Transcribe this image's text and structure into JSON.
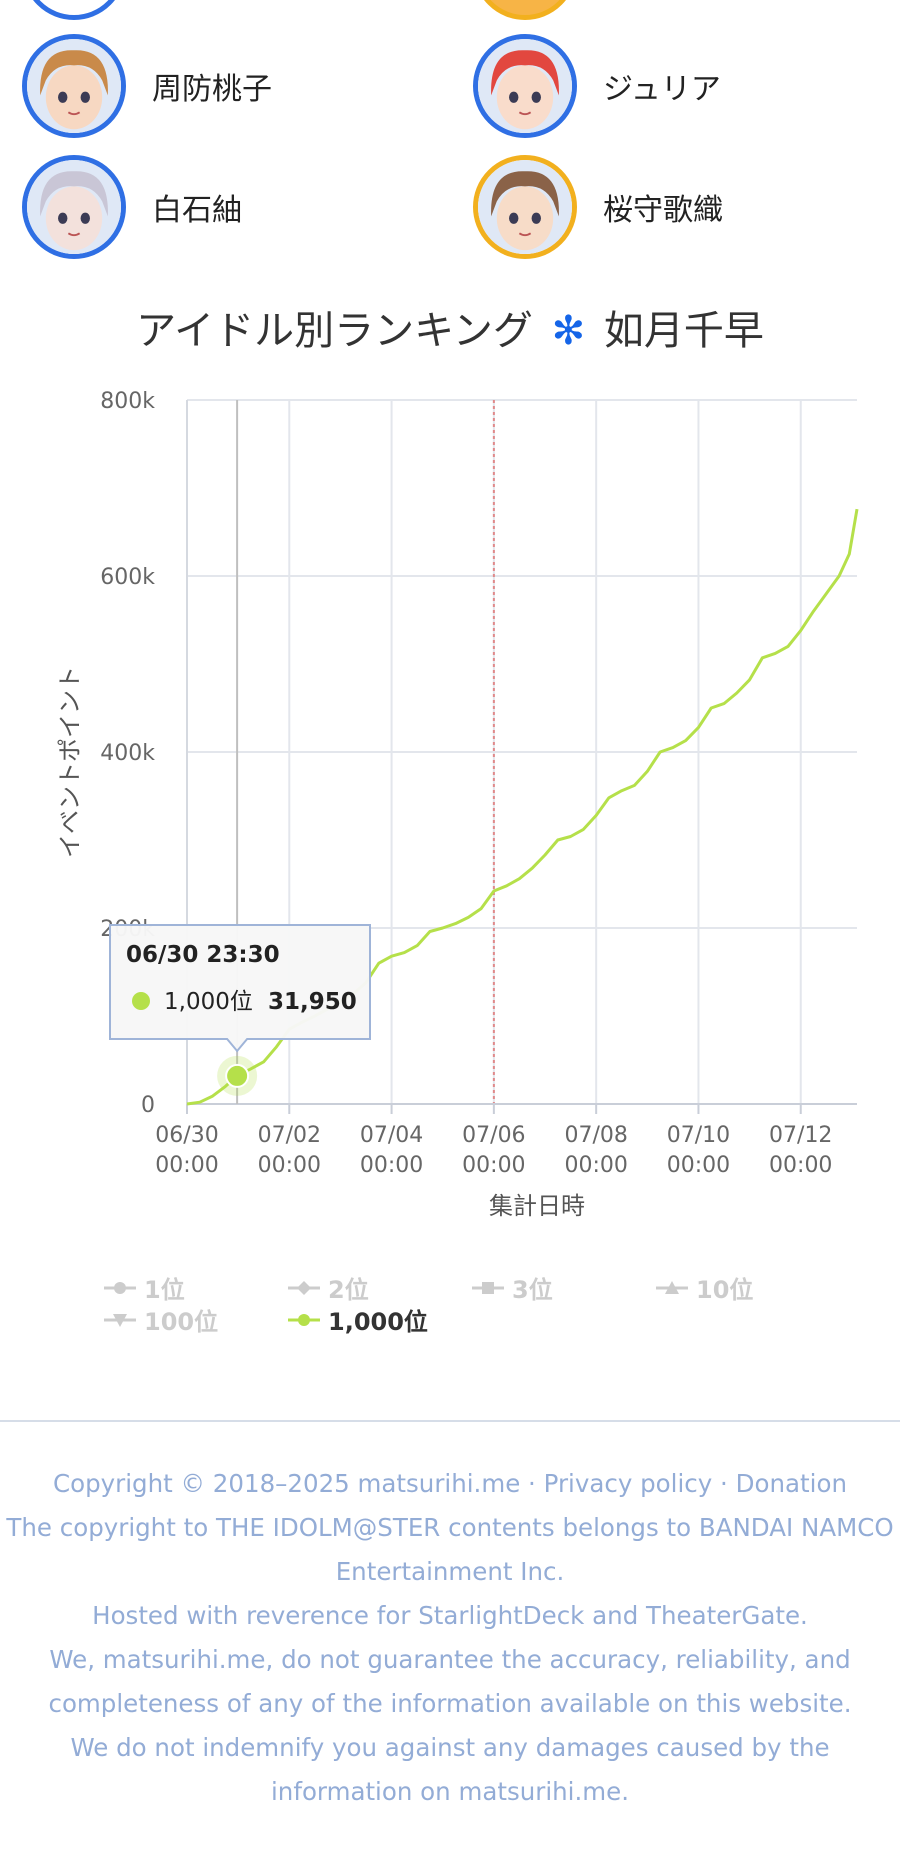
{
  "idols": [
    {
      "name": "周防桃子",
      "border": "#2f6fe4",
      "hair": "#c98a4a",
      "skin": "#f7d8c2"
    },
    {
      "name": "ジュリア",
      "border": "#2f6fe4",
      "hair": "#e2473f",
      "skin": "#f9dccb"
    },
    {
      "name": "白石紬",
      "border": "#2f6fe4",
      "hair": "#c9c6d6",
      "skin": "#f3e1dc"
    },
    {
      "name": "桜守歌織",
      "border": "#f2b01e",
      "hair": "#8a6248",
      "skin": "#f7dcc8"
    }
  ],
  "chart_title": {
    "prefix": "アイドル別ランキング",
    "star_icon": "snowflake-star-icon",
    "idol": "如月千早"
  },
  "chart_data": {
    "type": "line",
    "ylabel": "イベントポイント",
    "xlabel": "集計日時",
    "ylim": [
      0,
      800000
    ],
    "y_ticks": [
      "0",
      "200k",
      "400k",
      "600k",
      "800k"
    ],
    "x_ticks": [
      {
        "date": "06/30",
        "time": "00:00",
        "day": 0
      },
      {
        "date": "07/02",
        "time": "00:00",
        "day": 2
      },
      {
        "date": "07/04",
        "time": "00:00",
        "day": 4
      },
      {
        "date": "07/06",
        "time": "00:00",
        "day": 6
      },
      {
        "date": "07/08",
        "time": "00:00",
        "day": 8
      },
      {
        "date": "07/10",
        "time": "00:00",
        "day": 10
      },
      {
        "date": "07/12",
        "time": "00:00",
        "day": 12
      }
    ],
    "x_range_days": [
      0,
      13.1
    ],
    "midpoint_marker_day": 6,
    "grid": true,
    "series": [
      {
        "name": "1,000位",
        "color": "#b5e04a",
        "points": [
          [
            0,
            0
          ],
          [
            0.25,
            2000
          ],
          [
            0.5,
            9000
          ],
          [
            0.75,
            20000
          ],
          [
            0.98,
            31950
          ],
          [
            1.25,
            40000
          ],
          [
            1.5,
            48000
          ],
          [
            1.75,
            65000
          ],
          [
            2.0,
            85000
          ],
          [
            2.25,
            93000
          ],
          [
            2.5,
            100000
          ],
          [
            2.75,
            108000
          ],
          [
            3.0,
            116000
          ],
          [
            3.25,
            125000
          ],
          [
            3.5,
            138000
          ],
          [
            3.75,
            160000
          ],
          [
            4.0,
            168000
          ],
          [
            4.25,
            172000
          ],
          [
            4.5,
            180000
          ],
          [
            4.75,
            196000
          ],
          [
            5.0,
            200000
          ],
          [
            5.25,
            205000
          ],
          [
            5.5,
            212000
          ],
          [
            5.75,
            222000
          ],
          [
            6.0,
            242000
          ],
          [
            6.25,
            248000
          ],
          [
            6.5,
            256000
          ],
          [
            6.75,
            268000
          ],
          [
            7.0,
            283000
          ],
          [
            7.25,
            300000
          ],
          [
            7.5,
            304000
          ],
          [
            7.75,
            312000
          ],
          [
            8.0,
            328000
          ],
          [
            8.25,
            348000
          ],
          [
            8.5,
            356000
          ],
          [
            8.75,
            362000
          ],
          [
            9.0,
            378000
          ],
          [
            9.25,
            400000
          ],
          [
            9.5,
            405000
          ],
          [
            9.75,
            413000
          ],
          [
            10.0,
            428000
          ],
          [
            10.25,
            450000
          ],
          [
            10.5,
            455000
          ],
          [
            10.75,
            467000
          ],
          [
            11.0,
            482000
          ],
          [
            11.25,
            507000
          ],
          [
            11.5,
            512000
          ],
          [
            11.75,
            520000
          ],
          [
            12.0,
            538000
          ],
          [
            12.25,
            560000
          ],
          [
            12.5,
            580000
          ],
          [
            12.75,
            600000
          ],
          [
            12.95,
            625000
          ],
          [
            13.1,
            676000
          ]
        ]
      }
    ],
    "tooltip": {
      "day": 0.98,
      "value": 31950,
      "time_label": "06/30 23:30",
      "series_label": "1,000位",
      "value_label": "31,950"
    },
    "legend": [
      {
        "label": "1位",
        "marker": "circle",
        "active": false
      },
      {
        "label": "2位",
        "marker": "diamond",
        "active": false
      },
      {
        "label": "3位",
        "marker": "square",
        "active": false
      },
      {
        "label": "10位",
        "marker": "triangle",
        "active": false
      },
      {
        "label": "100位",
        "marker": "triangle-down",
        "active": false
      },
      {
        "label": "1,000位",
        "marker": "circle",
        "active": true,
        "color": "#b5e04a"
      }
    ]
  },
  "footer": {
    "copyright_line": "Copyright © 2018–2025 matsurihi.me",
    "separator": " · ",
    "privacy_link": "Privacy policy",
    "donation_link": "Donation",
    "idolmaster_line": "The copyright to THE IDOLM@STER contents belongs to BANDAI NAMCO Entertainment Inc.",
    "hosted_line": "Hosted with reverence for StarlightDeck and TheaterGate.",
    "disclaimer_1": "We, matsurihi.me, do not guarantee the accuracy, reliability, and completeness of any of the information available on this website.",
    "disclaimer_2": "We do not indemnify you against any damages caused by the information on matsurihi.me."
  },
  "colors": {
    "grid": "#e3e6ec",
    "axis_text": "#666666",
    "midpoint_line": "#e08a8a",
    "crosshair": "#bfbfbf",
    "footer_text": "#93acd6"
  }
}
